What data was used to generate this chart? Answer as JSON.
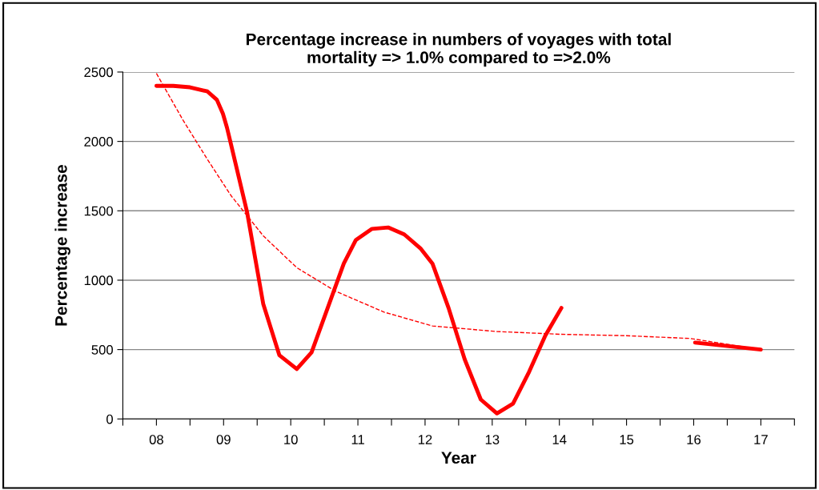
{
  "chart_data": {
    "type": "line",
    "title": "Percentage increase in numbers of voyages with total\nmortality => 1.0% compared to =>2.0%",
    "xlabel": "Year",
    "ylabel": "Percentage increase",
    "series": [
      {
        "color": "#ff0000",
        "line_style": "solid",
        "x": [
          8.0,
          8.25,
          8.5,
          8.76,
          8.9,
          8.99,
          9.05,
          9.11,
          9.35,
          9.59,
          9.83,
          10.09,
          10.31,
          10.55,
          10.79,
          10.97,
          11.21,
          11.45,
          11.69,
          11.93,
          12.11,
          12.35,
          12.59,
          12.83,
          13.07,
          13.31,
          13.55,
          13.79,
          14.03,
          null,
          16.02,
          17.0
        ],
        "values": [
          2400,
          2400,
          2390,
          2360,
          2300,
          2200,
          2100,
          1980,
          1490,
          830,
          460,
          360,
          480,
          800,
          1120,
          1290,
          1370,
          1380,
          1330,
          1230,
          1120,
          800,
          430,
          140,
          40,
          110,
          340,
          600,
          800,
          null,
          550,
          500
        ]
      },
      {
        "color": "#ff0000",
        "line_style": "dashed",
        "x": [
          8.0,
          8.4,
          8.76,
          9.11,
          9.59,
          10.09,
          10.67,
          11.39,
          12.11,
          13.07,
          14.03,
          14.99,
          15.95,
          17.0
        ],
        "values": [
          2490,
          2150,
          1870,
          1610,
          1320,
          1090,
          920,
          770,
          670,
          630,
          610,
          600,
          580,
          500
        ]
      }
    ],
    "xlim": [
      7.5,
      17.5
    ],
    "xticks": [
      {
        "value": 7.5,
        "label": null
      },
      {
        "value": 8,
        "label": "08"
      },
      {
        "value": 8.5,
        "label": null
      },
      {
        "value": 9,
        "label": "09"
      },
      {
        "value": 9.5,
        "label": null
      },
      {
        "value": 10,
        "label": "10"
      },
      {
        "value": 10.5,
        "label": null
      },
      {
        "value": 11,
        "label": "11"
      },
      {
        "value": 11.5,
        "label": null
      },
      {
        "value": 12,
        "label": "12"
      },
      {
        "value": 12.5,
        "label": null
      },
      {
        "value": 13,
        "label": "13"
      },
      {
        "value": 13.5,
        "label": null
      },
      {
        "value": 14,
        "label": "14"
      },
      {
        "value": 14.5,
        "label": null
      },
      {
        "value": 15,
        "label": "15"
      },
      {
        "value": 15.5,
        "label": null
      },
      {
        "value": 16,
        "label": "16"
      },
      {
        "value": 16.5,
        "label": null
      },
      {
        "value": 17,
        "label": "17"
      },
      {
        "value": 17.5,
        "label": null
      }
    ],
    "ylim": [
      0,
      2500
    ],
    "yticks": [
      0,
      500,
      1000,
      1500,
      2000,
      2500
    ],
    "grid": "y",
    "legend": false,
    "marker": "none"
  }
}
